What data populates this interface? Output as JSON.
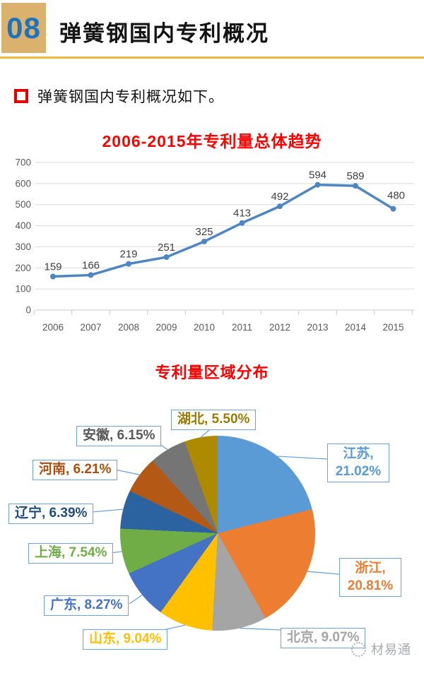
{
  "header": {
    "number": "08",
    "title": "弹簧钢国内专利概况"
  },
  "intro": {
    "text": "弹簧钢国内专利概况如下。"
  },
  "chart_data": [
    {
      "type": "line",
      "title": "2006-2015年专利量总体趋势",
      "title_color": "#FF0000",
      "categories": [
        "2006",
        "2007",
        "2008",
        "2009",
        "2010",
        "2011",
        "2012",
        "2013",
        "2014",
        "2015"
      ],
      "values": [
        159,
        166,
        219,
        251,
        325,
        413,
        492,
        594,
        589,
        480
      ],
      "xlabel": "",
      "ylabel": "",
      "ylim": [
        0,
        700
      ],
      "ytick_step": 100,
      "grid": true,
      "legend": "none",
      "series_color": "#4E86C4",
      "gridline_color": "#D9D9D9",
      "axis_text_color": "#595959",
      "data_label_color": "#3F3F3F"
    },
    {
      "type": "pie",
      "title": "专利量区域分布",
      "title_color": "#FF0000",
      "start_angle_deg": 0,
      "direction": "clockwise",
      "slices": [
        {
          "name": "江苏",
          "value": 21.02,
          "pct_label": "21.02%",
          "color": "#5B9BD5",
          "text_color": "#5B9BD5"
        },
        {
          "name": "浙江",
          "value": 20.81,
          "pct_label": "20.81%",
          "color": "#ED7D31",
          "text_color": "#ED7D31"
        },
        {
          "name": "北京",
          "value": 9.07,
          "pct_label": "9.07%",
          "color": "#A5A5A5",
          "text_color": "#A5A5A5"
        },
        {
          "name": "山东",
          "value": 9.04,
          "pct_label": "9.04%",
          "color": "#FFC000",
          "text_color": "#FFC000"
        },
        {
          "name": "广东",
          "value": 8.27,
          "pct_label": "8.27%",
          "color": "#4472C4",
          "text_color": "#4472C4"
        },
        {
          "name": "上海",
          "value": 7.54,
          "pct_label": "7.54%",
          "color": "#70AD47",
          "text_color": "#70AD47"
        },
        {
          "name": "辽宁",
          "value": 6.39,
          "pct_label": "6.39%",
          "color": "#2A63A0",
          "text_color": "#1F4E79"
        },
        {
          "name": "河南",
          "value": 6.21,
          "pct_label": "6.21%",
          "color": "#B45816",
          "text_color": "#A9500E"
        },
        {
          "name": "安徽",
          "value": 6.15,
          "pct_label": "6.15%",
          "color": "#757575",
          "text_color": "#595959"
        },
        {
          "name": "湖北",
          "value": 5.5,
          "pct_label": "5.50%",
          "color": "#AD8A00",
          "text_color": "#9C7A00"
        }
      ],
      "callout_border_color": "#6FA3D8"
    }
  ],
  "watermark": {
    "text": "材易通"
  },
  "colors": {
    "header_box_bg": "#DBB16E",
    "header_number": "#1E73BE",
    "divider_gold": "#ECB83D",
    "bullet_red": "#E00000",
    "chart_title_red": "#FF0000"
  }
}
